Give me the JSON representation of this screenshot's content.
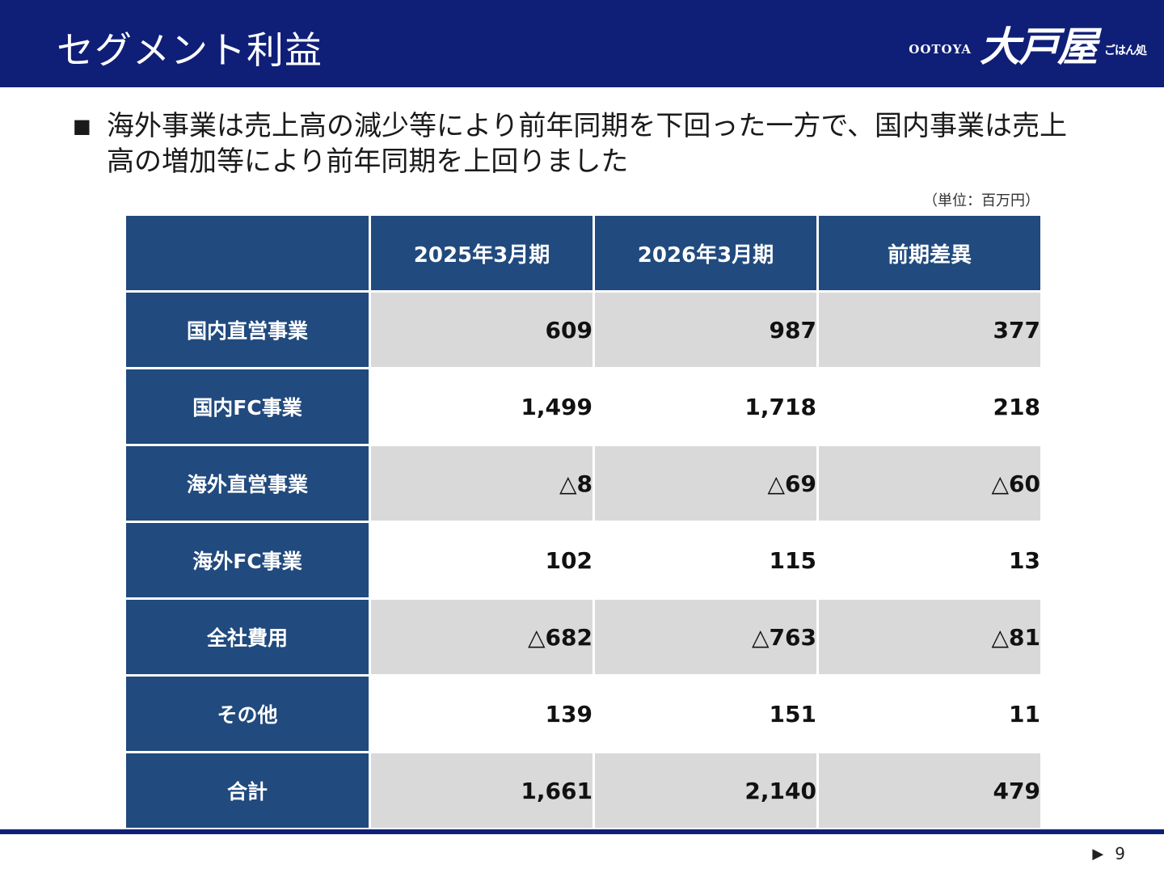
{
  "header": {
    "title": "セグメント利益",
    "logo": {
      "en": "OOTOYA",
      "jp": "大戸屋",
      "sub": "ごはん処"
    }
  },
  "bullet": {
    "text": "海外事業は売上高の減少等により前年同期を下回った一方で、国内事業は売上高の増加等により前年同期を上回りました"
  },
  "unit_label": "（単位：百万円）",
  "table": {
    "columns": [
      "2025年3月期",
      "2026年3月期",
      "前期差異"
    ],
    "rows": [
      {
        "label": "国内直営事業",
        "values": [
          "609",
          "987",
          "377"
        ]
      },
      {
        "label": "国内FC事業",
        "values": [
          "1,499",
          "1,718",
          "218"
        ]
      },
      {
        "label": "海外直営事業",
        "values": [
          "△8",
          "△69",
          "△60"
        ]
      },
      {
        "label": "海外FC事業",
        "values": [
          "102",
          "115",
          "13"
        ]
      },
      {
        "label": "全社費用",
        "values": [
          "△682",
          "△763",
          "△81"
        ]
      },
      {
        "label": "その他",
        "values": [
          "139",
          "151",
          "11"
        ]
      },
      {
        "label": "合計",
        "values": [
          "1,661",
          "2,140",
          "479"
        ]
      }
    ]
  },
  "footer": {
    "page_number": "9",
    "arrow_icon": "play-arrow-icon"
  }
}
